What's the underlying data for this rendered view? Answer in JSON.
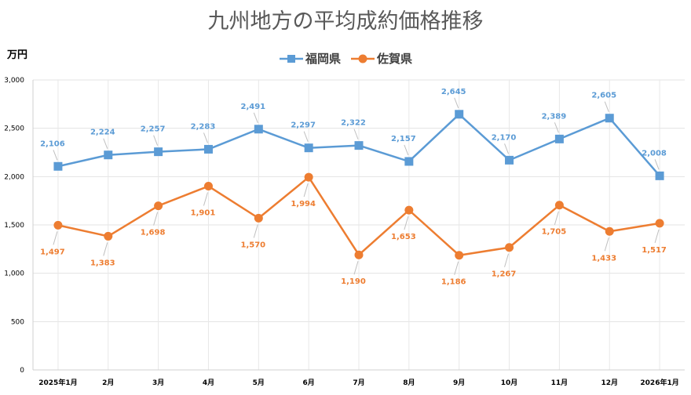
{
  "chart_data": {
    "type": "line",
    "title": "九州地方の平均成約価格推移",
    "ylabel": "万円",
    "xlabel": "",
    "ylim": [
      0,
      3000
    ],
    "yticks": [
      "0",
      "500",
      "1,000",
      "1,500",
      "2,000",
      "2,500",
      "3,000"
    ],
    "ytick_values": [
      0,
      500,
      1000,
      1500,
      2000,
      2500,
      3000
    ],
    "categories": [
      "2025年1月",
      "2月",
      "3月",
      "4月",
      "5月",
      "6月",
      "7月",
      "8月",
      "9月",
      "10月",
      "11月",
      "12月",
      "2026年1月"
    ],
    "grid": true,
    "legend_position": "top-center",
    "series": [
      {
        "name": "福岡県",
        "color": "#5b9bd5",
        "marker": "square",
        "values": [
          2106,
          2224,
          2257,
          2283,
          2491,
          2297,
          2322,
          2157,
          2645,
          2170,
          2389,
          2605,
          2008
        ],
        "labels": [
          "2,106",
          "2,224",
          "2,257",
          "2,283",
          "2,491",
          "2,297",
          "2,322",
          "2,157",
          "2,645",
          "2,170",
          "2,389",
          "2,605",
          "2,008"
        ]
      },
      {
        "name": "佐賀県",
        "color": "#ed7d31",
        "marker": "circle",
        "values": [
          1497,
          1383,
          1698,
          1901,
          1570,
          1994,
          1190,
          1653,
          1186,
          1267,
          1705,
          1433,
          1517
        ],
        "labels": [
          "1,497",
          "1,383",
          "1,698",
          "1,901",
          "1,570",
          "1,994",
          "1,190",
          "1,653",
          "1,186",
          "1,267",
          "1,705",
          "1,433",
          "1,517"
        ]
      }
    ]
  }
}
